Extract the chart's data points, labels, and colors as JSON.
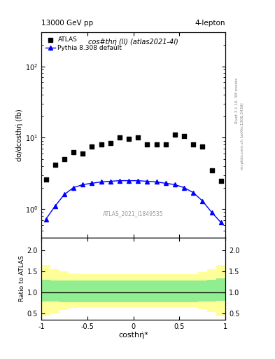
{
  "title_top_left": "13000 GeV pp",
  "title_top_right": "4-lepton",
  "right_label_top": "Rivet 3.1.10, 3M events",
  "right_label_bot": "mcplots.cern.ch [arXiv:1306.3436]",
  "watermark": "ATLAS_2021_I1849535",
  "plot_title": "cos#thη* (ll) (atlas2021-4l)",
  "xlabel": "costhη*",
  "ylabel": "dσ/dcosthη* (fb)",
  "ratio_ylabel": "Ratio to ATLAS",
  "atlas_x": [
    -0.95,
    -0.85,
    -0.75,
    -0.65,
    -0.55,
    -0.45,
    -0.35,
    -0.25,
    -0.15,
    -0.05,
    0.05,
    0.15,
    0.25,
    0.35,
    0.45,
    0.55,
    0.65,
    0.75,
    0.85,
    0.95
  ],
  "atlas_y": [
    2.6,
    4.2,
    5.0,
    6.3,
    6.0,
    7.5,
    8.0,
    8.5,
    10.0,
    9.7,
    10.0,
    8.0,
    8.0,
    8.0,
    11.0,
    10.5,
    8.0,
    7.5,
    3.5,
    2.5
  ],
  "pythia_x": [
    -0.95,
    -0.85,
    -0.75,
    -0.65,
    -0.55,
    -0.45,
    -0.35,
    -0.25,
    -0.15,
    -0.05,
    0.05,
    0.15,
    0.25,
    0.35,
    0.45,
    0.55,
    0.65,
    0.75,
    0.85,
    0.95
  ],
  "pythia_y": [
    0.72,
    1.1,
    1.6,
    2.0,
    2.2,
    2.3,
    2.4,
    2.45,
    2.5,
    2.5,
    2.5,
    2.45,
    2.4,
    2.3,
    2.2,
    2.0,
    1.7,
    1.3,
    0.9,
    0.65
  ],
  "ratio_green_upper": [
    1.3,
    1.28,
    1.27,
    1.27,
    1.27,
    1.27,
    1.27,
    1.27,
    1.27,
    1.27,
    1.27,
    1.27,
    1.27,
    1.27,
    1.27,
    1.27,
    1.27,
    1.28,
    1.3,
    1.32
  ],
  "ratio_green_lower": [
    0.78,
    0.77,
    0.76,
    0.76,
    0.76,
    0.76,
    0.76,
    0.76,
    0.76,
    0.76,
    0.76,
    0.76,
    0.76,
    0.76,
    0.76,
    0.76,
    0.76,
    0.77,
    0.78,
    0.8
  ],
  "ratio_yellow_upper": [
    1.65,
    1.55,
    1.5,
    1.45,
    1.43,
    1.42,
    1.42,
    1.42,
    1.42,
    1.42,
    1.42,
    1.42,
    1.42,
    1.42,
    1.42,
    1.42,
    1.43,
    1.48,
    1.55,
    1.65
  ],
  "ratio_yellow_lower": [
    0.45,
    0.5,
    0.58,
    0.62,
    0.64,
    0.65,
    0.65,
    0.65,
    0.65,
    0.65,
    0.65,
    0.65,
    0.65,
    0.65,
    0.65,
    0.65,
    0.64,
    0.6,
    0.52,
    0.42
  ],
  "bin_edges": [
    -1.0,
    -0.9,
    -0.8,
    -0.7,
    -0.6,
    -0.5,
    -0.4,
    -0.3,
    -0.2,
    -0.1,
    0.0,
    0.1,
    0.2,
    0.3,
    0.4,
    0.5,
    0.6,
    0.7,
    0.8,
    0.9,
    1.0
  ],
  "xlim": [
    -1.0,
    1.0
  ],
  "ylim_log": [
    0.4,
    300
  ],
  "ylim_ratio": [
    0.35,
    2.3
  ],
  "atlas_color": "black",
  "pythia_color": "blue",
  "green_color": "#90EE90",
  "yellow_color": "#FFFF99",
  "ratio_yticks": [
    0.5,
    1.0,
    1.5,
    2.0
  ],
  "xticks": [
    -1.0,
    -0.5,
    0.0,
    0.5,
    1.0
  ]
}
